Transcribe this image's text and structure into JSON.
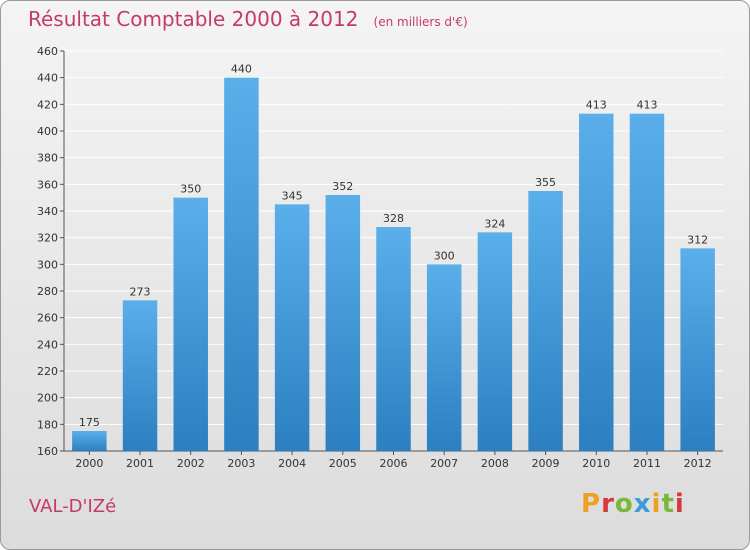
{
  "page": {
    "commune": "VAL-D'IZé",
    "logo_text": "Proxiti",
    "accent_color": "#c43a6a",
    "bar_color": "#3e95d8"
  },
  "chart_data": {
    "type": "bar",
    "title": "Résultat Comptable 2000 à 2012",
    "subtitle": "(en milliers d'€)",
    "categories": [
      "2000",
      "2001",
      "2002",
      "2003",
      "2004",
      "2005",
      "2006",
      "2007",
      "2008",
      "2009",
      "2010",
      "2011",
      "2012"
    ],
    "values": [
      175,
      273,
      350,
      440,
      345,
      352,
      328,
      300,
      324,
      355,
      413,
      413,
      312
    ],
    "ylim": [
      160,
      460
    ],
    "yticks": [
      160,
      180,
      200,
      220,
      240,
      260,
      280,
      300,
      320,
      340,
      360,
      380,
      400,
      420,
      440,
      460
    ],
    "xlabel": "",
    "ylabel": "",
    "grid": true,
    "legend": "none"
  }
}
